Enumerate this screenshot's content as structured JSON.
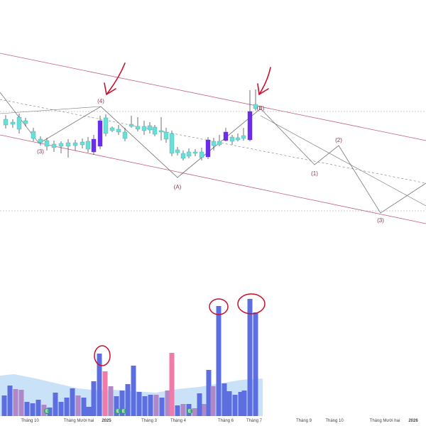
{
  "colors": {
    "bull_candle": "#6a2ee8",
    "bear_candle": "#66e0d8",
    "volume_bar": "#5d6fe0",
    "volume_up_pink": "#f07aa8",
    "volume_mauve": "#b088c8",
    "volume_area": "#b8d8f5",
    "channel_line": "#c06080",
    "annotation": "#c8102e",
    "earnings_badge": "#2fa86a",
    "wave_label": "#8a3a5a"
  },
  "icons": {
    "annotation_arrow": "hand-drawn-arrow-icon",
    "annotation_circle": "hand-drawn-circle-icon",
    "earnings_badge": "earnings-e-badge-icon"
  },
  "chart_data": {
    "type": "candlestick-with-volume",
    "title": "",
    "xlabel": "",
    "ylabel": "",
    "x_tick_labels": [
      "Tháng 10",
      "Tháng Mười hai",
      "2025",
      "Tháng 3",
      "Tháng 4",
      "Tháng 6",
      "Tháng 7",
      "Tháng 9",
      "Tháng 10",
      "Tháng Mười hai",
      "2026"
    ],
    "wave_labels": [
      "(3)",
      "(4)",
      "(A)",
      "(B)",
      "(1)",
      "(2)",
      "(3)"
    ],
    "earnings_marker_text": "E",
    "candles_note": "Weekly candles reproduced by shape only; the price axis is not visible in the screenshot.",
    "grid": false,
    "legend": "none"
  }
}
